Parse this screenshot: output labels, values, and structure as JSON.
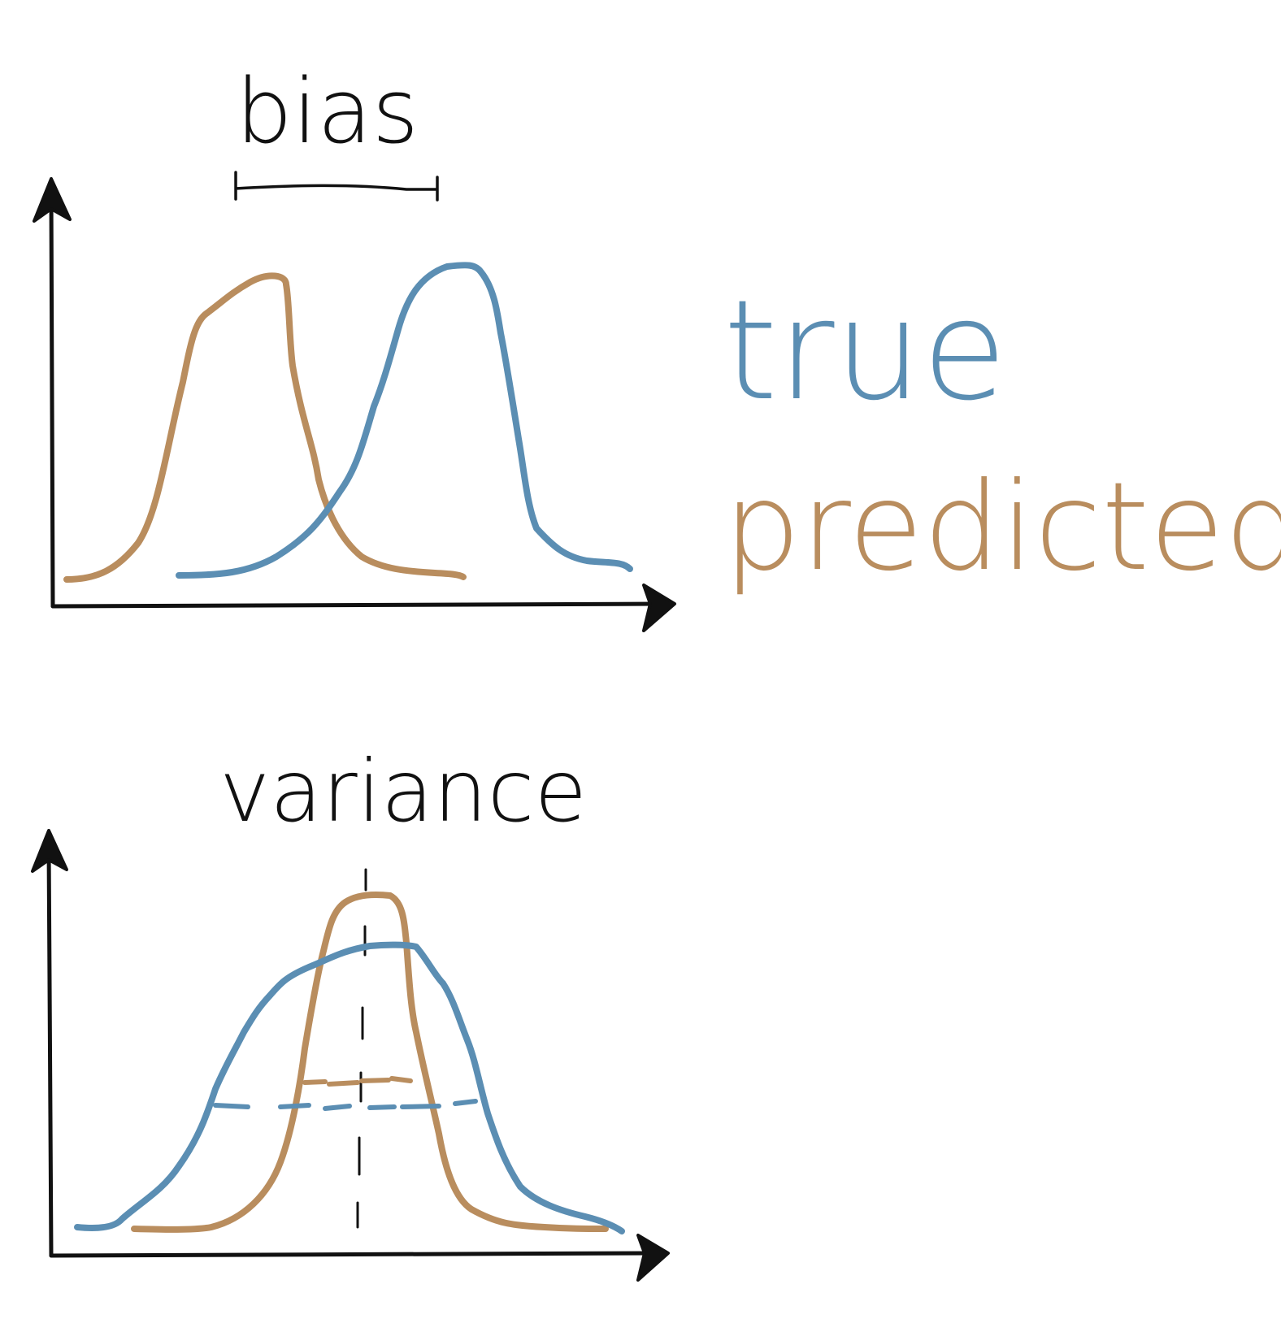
{
  "panels": {
    "bias": {
      "title": "bias",
      "bracket": "bias-span"
    },
    "variance": {
      "title": "variance"
    }
  },
  "legend": {
    "true_label": "true",
    "predicted_label": "predicted"
  },
  "colors": {
    "true": "#5b8eb3",
    "predicted": "#b98d5e",
    "axis": "#111111"
  }
}
